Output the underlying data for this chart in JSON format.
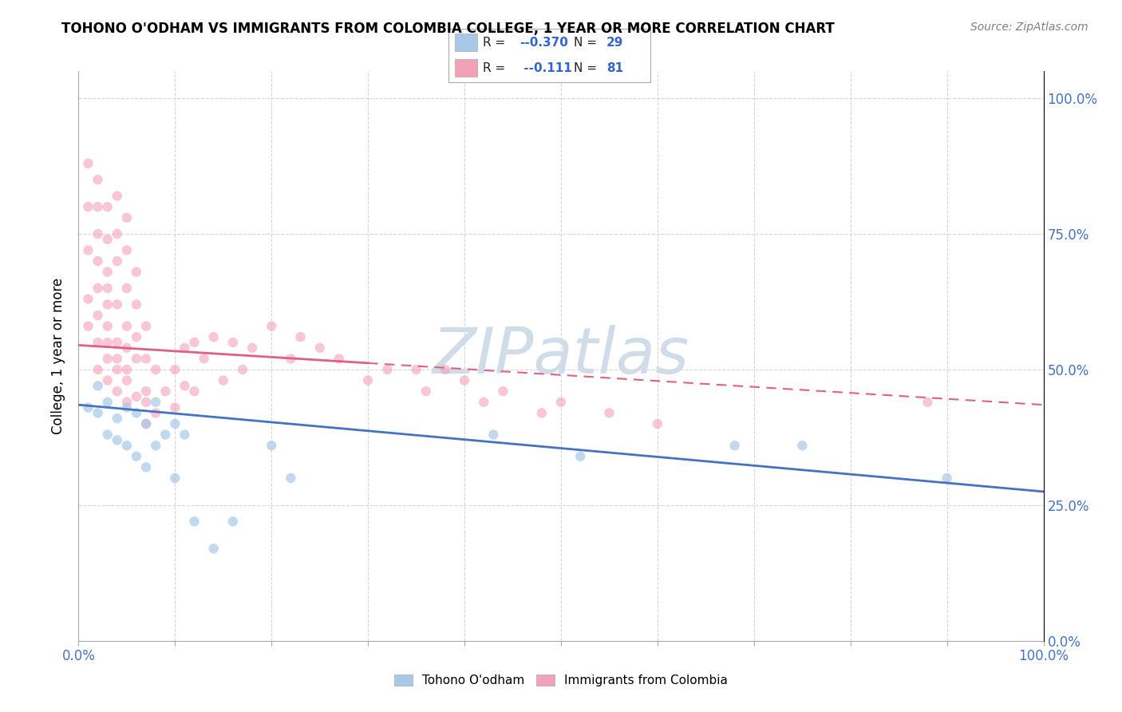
{
  "title": "TOHONO O'ODHAM VS IMMIGRANTS FROM COLOMBIA COLLEGE, 1 YEAR OR MORE CORRELATION CHART",
  "source": "Source: ZipAtlas.com",
  "ylabel": "College, 1 year or more",
  "blue_color": "#a8c8e8",
  "pink_color": "#f4a0b8",
  "blue_line_color": "#4472c4",
  "pink_line_color": "#e06080",
  "watermark": "ZIPatlas",
  "xlim": [
    0.0,
    1.0
  ],
  "ylim": [
    0.0,
    1.05
  ],
  "xticks": [
    0.0,
    0.1,
    0.2,
    0.3,
    0.4,
    0.5,
    0.6,
    0.7,
    0.8,
    0.9,
    1.0
  ],
  "yticks": [
    0.0,
    0.25,
    0.5,
    0.75,
    1.0
  ],
  "blue_trend_y_start": 0.435,
  "blue_trend_y_end": 0.275,
  "pink_trend_y_start": 0.545,
  "pink_trend_y_end": 0.435,
  "legend_blue_r": "-0.370",
  "legend_blue_n": "29",
  "legend_pink_r": "-0.111",
  "legend_pink_n": "81",
  "blue_marker_size": 80,
  "pink_marker_size": 80,
  "blue_alpha": 0.7,
  "pink_alpha": 0.6
}
